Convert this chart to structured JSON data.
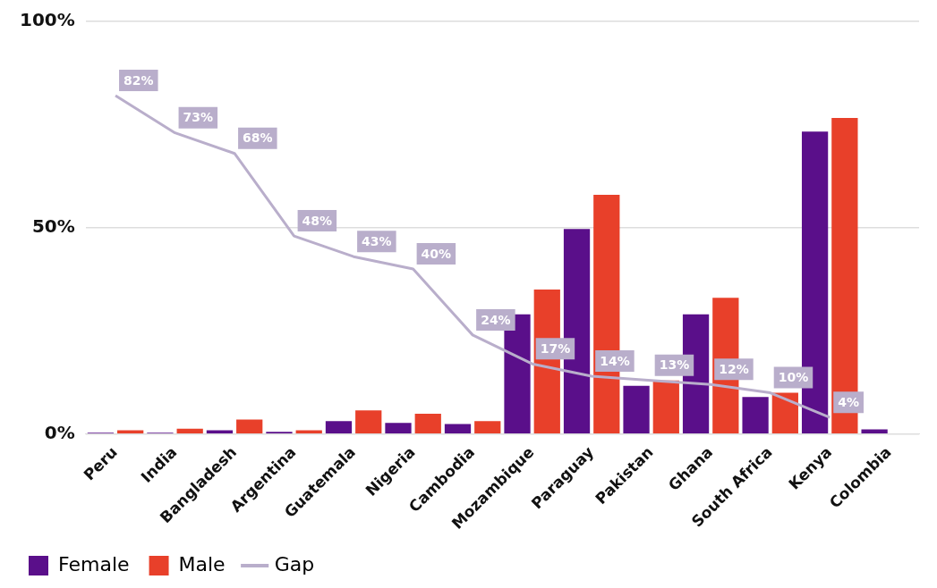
{
  "chart_data": {
    "type": "bar",
    "categories": [
      "Peru",
      "India",
      "Bangladesh",
      "Argentina",
      "Guatemala",
      "Nigeria",
      "Cambodia",
      "Mozambique",
      "Paraguay",
      "Pakistan",
      "Ghana",
      "South Africa",
      "Kenya",
      "Colombia"
    ],
    "series": [
      {
        "name": "Female",
        "color": "#5a0f8a",
        "values": [
          0.3,
          0.3,
          0.9,
          0.5,
          3.1,
          2.7,
          2.4,
          29,
          49.7,
          11.7,
          29,
          9,
          73.3,
          1.1
        ]
      },
      {
        "name": "Male",
        "color": "#e8402a",
        "values": [
          0.9,
          1.3,
          3.5,
          0.9,
          5.7,
          4.9,
          3.1,
          35,
          58,
          13,
          33,
          10,
          76.6,
          null
        ]
      },
      {
        "name": "Gap",
        "type": "line",
        "color": "#b9aecb",
        "values": [
          82,
          73,
          68,
          48,
          43,
          40,
          24,
          17,
          14,
          13,
          12,
          10,
          4,
          null
        ],
        "value_labels": [
          "82%",
          "73%",
          "68%",
          "48%",
          "43%",
          "40%",
          "24%",
          "17%",
          "14%",
          "13%",
          "12%",
          "10%",
          "4%",
          null
        ]
      }
    ],
    "ylim": [
      0,
      100
    ],
    "yticks": [
      {
        "value": 0,
        "label": "0%"
      },
      {
        "value": 50,
        "label": "50%"
      },
      {
        "value": 100,
        "label": "100%"
      }
    ],
    "grid": "y",
    "legend": "bottom left",
    "marker": "none",
    "line_style": "solid"
  }
}
